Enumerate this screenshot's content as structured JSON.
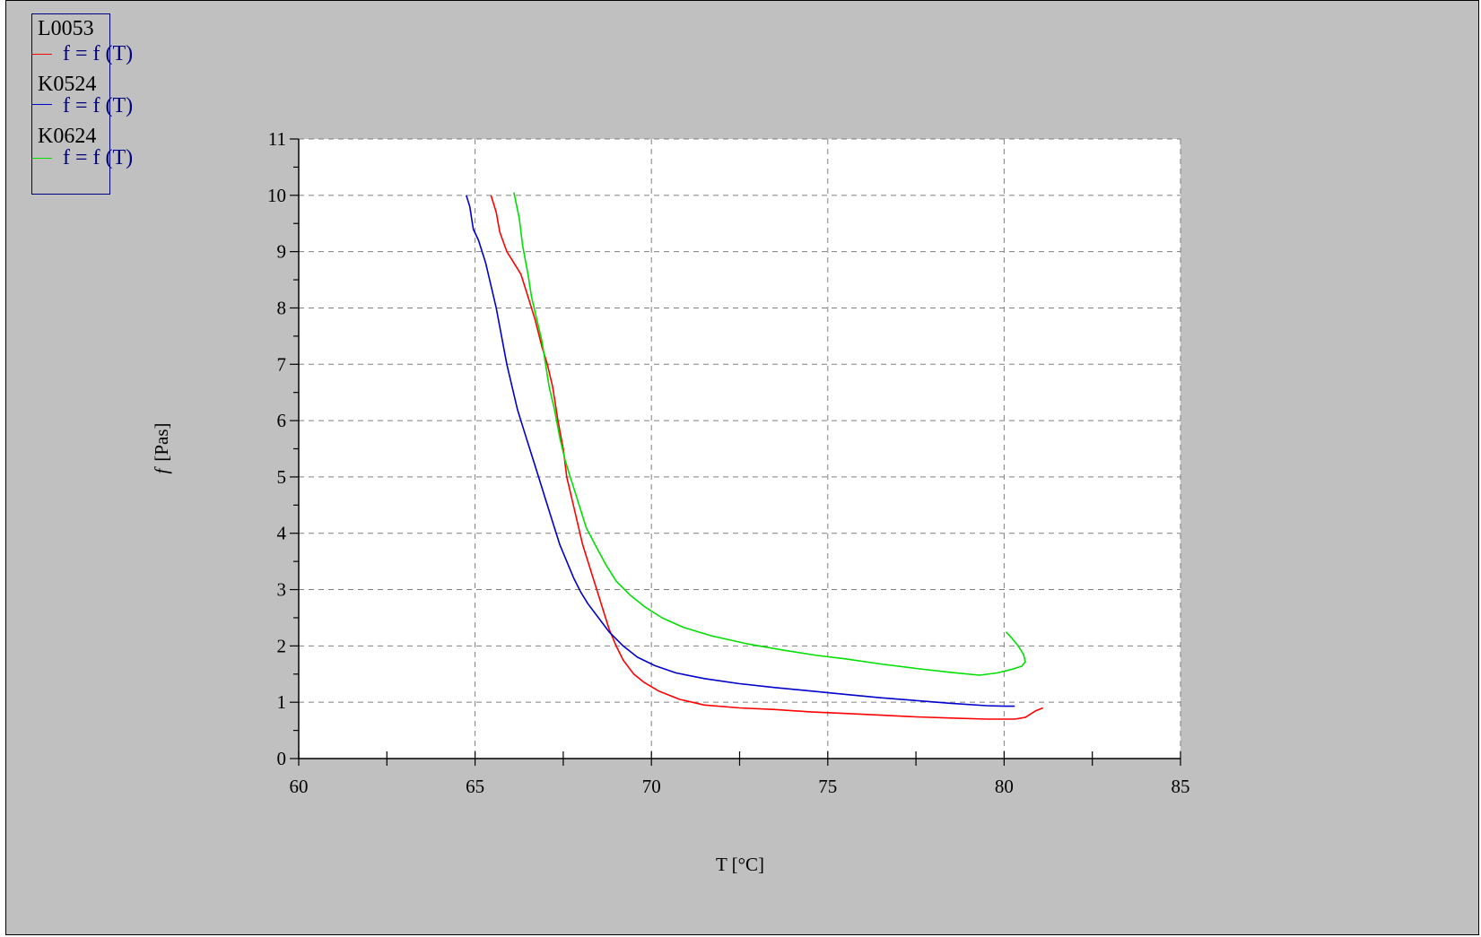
{
  "chart_data": {
    "type": "line",
    "xlabel": "T  [°C]",
    "ylabel": "f  [Pas]",
    "ylabel_symbol": "f",
    "ylabel_unit": "[Pas]",
    "xlim": [
      60,
      85
    ],
    "ylim": [
      0,
      11
    ],
    "x_ticks": [
      60,
      65,
      70,
      75,
      80,
      85
    ],
    "y_ticks": [
      0,
      1,
      2,
      3,
      4,
      5,
      6,
      7,
      8,
      9,
      10,
      11
    ],
    "grid": true,
    "legend_position": "top-left",
    "series": [
      {
        "name": "L0053",
        "legend_expr": "f = f (T)",
        "color": "#ff0000",
        "points": [
          [
            65.45,
            10.0
          ],
          [
            65.6,
            9.7
          ],
          [
            65.7,
            9.35
          ],
          [
            65.9,
            9.0
          ],
          [
            66.1,
            8.8
          ],
          [
            66.3,
            8.6
          ],
          [
            66.5,
            8.2
          ],
          [
            66.7,
            7.8
          ],
          [
            66.9,
            7.3
          ],
          [
            67.05,
            7.0
          ],
          [
            67.2,
            6.6
          ],
          [
            67.35,
            6.0
          ],
          [
            67.5,
            5.5
          ],
          [
            67.6,
            5.0
          ],
          [
            67.75,
            4.6
          ],
          [
            67.9,
            4.2
          ],
          [
            68.05,
            3.8
          ],
          [
            68.2,
            3.5
          ],
          [
            68.35,
            3.2
          ],
          [
            68.5,
            2.9
          ],
          [
            68.65,
            2.6
          ],
          [
            68.8,
            2.3
          ],
          [
            69.0,
            2.0
          ],
          [
            69.2,
            1.75
          ],
          [
            69.5,
            1.5
          ],
          [
            69.8,
            1.35
          ],
          [
            70.2,
            1.2
          ],
          [
            70.8,
            1.05
          ],
          [
            71.5,
            0.95
          ],
          [
            72.5,
            0.9
          ],
          [
            73.5,
            0.87
          ],
          [
            74.5,
            0.83
          ],
          [
            75.5,
            0.8
          ],
          [
            76.5,
            0.77
          ],
          [
            77.5,
            0.74
          ],
          [
            78.5,
            0.72
          ],
          [
            79.5,
            0.7
          ],
          [
            80.3,
            0.7
          ],
          [
            80.6,
            0.73
          ],
          [
            80.9,
            0.85
          ],
          [
            81.1,
            0.9
          ]
        ]
      },
      {
        "name": "K0524",
        "legend_expr": "f = f (T)",
        "color": "#0000cc",
        "points": [
          [
            64.75,
            10.0
          ],
          [
            64.85,
            9.8
          ],
          [
            64.95,
            9.4
          ],
          [
            65.1,
            9.2
          ],
          [
            65.3,
            8.8
          ],
          [
            65.45,
            8.4
          ],
          [
            65.6,
            8.0
          ],
          [
            65.75,
            7.5
          ],
          [
            65.9,
            7.0
          ],
          [
            66.05,
            6.6
          ],
          [
            66.2,
            6.2
          ],
          [
            66.4,
            5.8
          ],
          [
            66.6,
            5.4
          ],
          [
            66.8,
            5.0
          ],
          [
            67.0,
            4.6
          ],
          [
            67.2,
            4.2
          ],
          [
            67.4,
            3.8
          ],
          [
            67.6,
            3.5
          ],
          [
            67.8,
            3.2
          ],
          [
            68.0,
            2.95
          ],
          [
            68.2,
            2.75
          ],
          [
            68.5,
            2.5
          ],
          [
            68.8,
            2.25
          ],
          [
            69.2,
            2.0
          ],
          [
            69.6,
            1.8
          ],
          [
            70.1,
            1.65
          ],
          [
            70.7,
            1.52
          ],
          [
            71.5,
            1.42
          ],
          [
            72.5,
            1.33
          ],
          [
            73.5,
            1.26
          ],
          [
            74.5,
            1.2
          ],
          [
            75.5,
            1.14
          ],
          [
            76.5,
            1.08
          ],
          [
            77.5,
            1.03
          ],
          [
            78.5,
            0.98
          ],
          [
            79.5,
            0.94
          ],
          [
            80.0,
            0.93
          ],
          [
            80.3,
            0.93
          ]
        ]
      },
      {
        "name": "K0624",
        "legend_expr": "f = f (T)",
        "color": "#00e000",
        "points": [
          [
            66.1,
            10.05
          ],
          [
            66.25,
            9.6
          ],
          [
            66.35,
            9.1
          ],
          [
            66.5,
            8.6
          ],
          [
            66.6,
            8.2
          ],
          [
            66.75,
            7.8
          ],
          [
            66.9,
            7.4
          ],
          [
            67.0,
            7.0
          ],
          [
            67.1,
            6.6
          ],
          [
            67.25,
            6.2
          ],
          [
            67.4,
            5.7
          ],
          [
            67.55,
            5.3
          ],
          [
            67.75,
            4.9
          ],
          [
            67.95,
            4.5
          ],
          [
            68.15,
            4.1
          ],
          [
            68.4,
            3.8
          ],
          [
            68.7,
            3.45
          ],
          [
            69.0,
            3.15
          ],
          [
            69.4,
            2.9
          ],
          [
            69.8,
            2.7
          ],
          [
            70.3,
            2.5
          ],
          [
            70.9,
            2.33
          ],
          [
            71.7,
            2.18
          ],
          [
            72.7,
            2.04
          ],
          [
            73.7,
            1.93
          ],
          [
            74.7,
            1.83
          ],
          [
            75.5,
            1.77
          ],
          [
            76.5,
            1.68
          ],
          [
            77.5,
            1.6
          ],
          [
            78.5,
            1.53
          ],
          [
            79.3,
            1.48
          ],
          [
            79.8,
            1.52
          ],
          [
            80.2,
            1.58
          ],
          [
            80.5,
            1.64
          ],
          [
            80.6,
            1.72
          ],
          [
            80.55,
            1.85
          ],
          [
            80.4,
            2.0
          ],
          [
            80.2,
            2.15
          ],
          [
            80.05,
            2.25
          ]
        ]
      }
    ]
  }
}
